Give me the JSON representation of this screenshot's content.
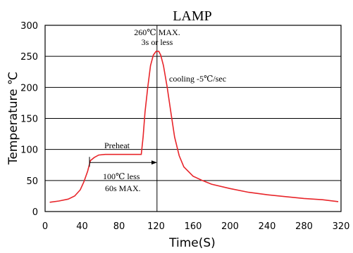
{
  "chart_data": {
    "type": "line",
    "title": "LAMP",
    "xlabel": "Time(S)",
    "ylabel": "Temperature ℃",
    "xlim": [
      0,
      320
    ],
    "ylim": [
      0,
      300
    ],
    "x_ticks": [
      0,
      40,
      80,
      120,
      160,
      200,
      240,
      280,
      320
    ],
    "y_ticks": [
      0,
      50,
      100,
      150,
      200,
      250,
      300
    ],
    "grid": "horizontal",
    "series": [
      {
        "color": "#e8252a",
        "points": [
          [
            5,
            15
          ],
          [
            15,
            17
          ],
          [
            25,
            20
          ],
          [
            32,
            25
          ],
          [
            38,
            35
          ],
          [
            42,
            48
          ],
          [
            46,
            65
          ],
          [
            49,
            82
          ],
          [
            53,
            87
          ],
          [
            58,
            91
          ],
          [
            65,
            92
          ],
          [
            80,
            92
          ],
          [
            95,
            92
          ],
          [
            104,
            92
          ],
          [
            106,
            120
          ],
          [
            108,
            160
          ],
          [
            111,
            200
          ],
          [
            114,
            235
          ],
          [
            117,
            252
          ],
          [
            120,
            258
          ],
          [
            123,
            258
          ],
          [
            125,
            252
          ],
          [
            128,
            235
          ],
          [
            132,
            200
          ],
          [
            136,
            160
          ],
          [
            140,
            120
          ],
          [
            145,
            90
          ],
          [
            150,
            72
          ],
          [
            160,
            57
          ],
          [
            170,
            50
          ],
          [
            180,
            44
          ],
          [
            200,
            37
          ],
          [
            220,
            31
          ],
          [
            240,
            27
          ],
          [
            260,
            24
          ],
          [
            280,
            21
          ],
          [
            300,
            19
          ],
          [
            317,
            16
          ]
        ]
      }
    ],
    "vertical_marker_x": 121,
    "annotations": {
      "peak_line1": "260℃ MAX.",
      "peak_line2": "3s or less",
      "cooling": "cooling -5℃/sec",
      "preheat": "Preheat",
      "range_line1": "100℃ less",
      "range_line2": "60s MAX."
    },
    "range_arrow": {
      "x_start": 48,
      "x_end": 121,
      "y": 79
    }
  }
}
